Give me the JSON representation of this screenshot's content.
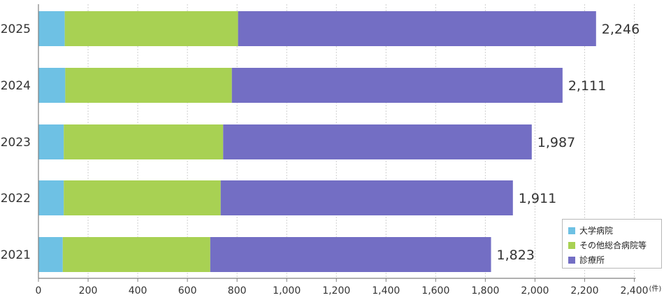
{
  "chart_data": {
    "type": "bar",
    "orientation": "horizontal",
    "stacked": true,
    "categories": [
      "2025",
      "2024",
      "2023",
      "2022",
      "2021"
    ],
    "series": [
      {
        "name": "大学病院",
        "color": "#6ec1e4",
        "values": [
          106,
          108,
          102,
          102,
          98
        ]
      },
      {
        "name": "その他総合病院等",
        "color": "#a8d153",
        "values": [
          698,
          671,
          642,
          632,
          594
        ]
      },
      {
        "name": "診療所",
        "color": "#736ec4",
        "values": [
          1442,
          1332,
          1243,
          1177,
          1131
        ]
      }
    ],
    "totals": [
      "2,246",
      "2,111",
      "1,987",
      "1,911",
      "1,823"
    ],
    "x_ticks": [
      "0",
      "200",
      "400",
      "600",
      "800",
      "1,000",
      "1,200",
      "1,400",
      "1,600",
      "1,800",
      "2,000",
      "2,200",
      "2,400"
    ],
    "xlim": [
      0,
      2400
    ],
    "unit_label": "(件)",
    "grid": true,
    "legend_position": "bottom-right"
  }
}
